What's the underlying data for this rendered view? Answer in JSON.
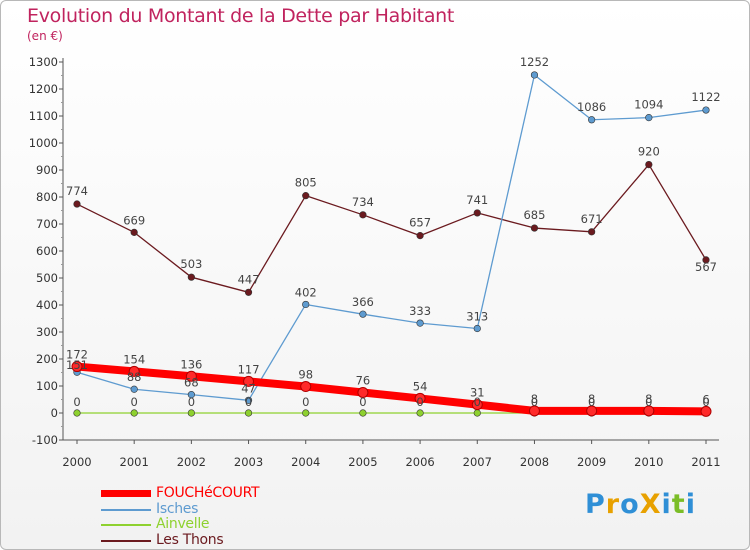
{
  "title": "Evolution du Montant de la Dette par Habitant",
  "subtitle": "(en €)",
  "logo": {
    "text": "ProXiti",
    "colors": [
      "#2f8fd6",
      "#e8a100",
      "#2f8fd6",
      "#e8a100",
      "#2f8fd6",
      "#7bbd27",
      "#2f8fd6"
    ]
  },
  "chart_data": {
    "type": "line",
    "title": "Evolution du Montant de la Dette par Habitant",
    "subtitle": "(en €)",
    "ylim": [
      -100,
      1300
    ],
    "ytick_step": 100,
    "grid": false,
    "legend_position": "bottom-left",
    "x": [
      "2000",
      "2001",
      "2002",
      "2003",
      "2004",
      "2005",
      "2006",
      "2007",
      "2008",
      "2009",
      "2010",
      "2011"
    ],
    "yticks": [
      "-100",
      "0",
      "100",
      "200",
      "300",
      "400",
      "500",
      "600",
      "700",
      "800",
      "900",
      "1000",
      "1100",
      "1200",
      "1300"
    ],
    "series": [
      {
        "name": "Les Thons",
        "color": "#6b1a1f",
        "values": [
          774,
          669,
          503,
          447,
          805,
          734,
          657,
          741,
          685,
          671,
          920,
          567
        ],
        "labels": [
          "774",
          "669",
          "503",
          "447",
          "805",
          "734",
          "657",
          "741",
          "685",
          "671",
          "920",
          "567"
        ]
      },
      {
        "name": "Isches",
        "color": "#5e9bd0",
        "values": [
          151,
          88,
          68,
          47,
          402,
          366,
          333,
          313,
          1252,
          1086,
          1094,
          1122
        ],
        "labels": [
          "151",
          "88",
          "68",
          "47",
          "402",
          "366",
          "333",
          "313",
          "1252",
          "1086",
          "1094",
          "1122"
        ]
      },
      {
        "name": "Ainvelle",
        "color": "#8ed12f",
        "values": [
          0,
          0,
          0,
          0,
          0,
          0,
          0,
          0,
          0,
          0,
          0,
          0
        ],
        "labels": [
          "0",
          "0",
          "0",
          "0",
          "0",
          "0",
          "0",
          "0",
          "0",
          "0",
          "0",
          "0"
        ]
      },
      {
        "name": "FOUCHéCOURT",
        "color": "#ff0000",
        "values": [
          172,
          154,
          136,
          117,
          98,
          76,
          54,
          31,
          8,
          8,
          8,
          6
        ],
        "labels": [
          "172",
          "154",
          "136",
          "117",
          "98",
          "76",
          "54",
          "31",
          "8",
          "8",
          "8",
          "6"
        ]
      }
    ],
    "legend": [
      "FOUCHéCOURT",
      "Isches",
      "Ainvelle",
      "Les Thons"
    ]
  },
  "legend_entries": [
    {
      "label": "FOUCHéCOURT",
      "color": "#ff0000",
      "thick": true
    },
    {
      "label": "Isches",
      "color": "#5e9bd0",
      "thick": false
    },
    {
      "label": "Ainvelle",
      "color": "#8ed12f",
      "thick": false
    },
    {
      "label": "Les Thons",
      "color": "#6b1a1f",
      "thick": false
    }
  ]
}
